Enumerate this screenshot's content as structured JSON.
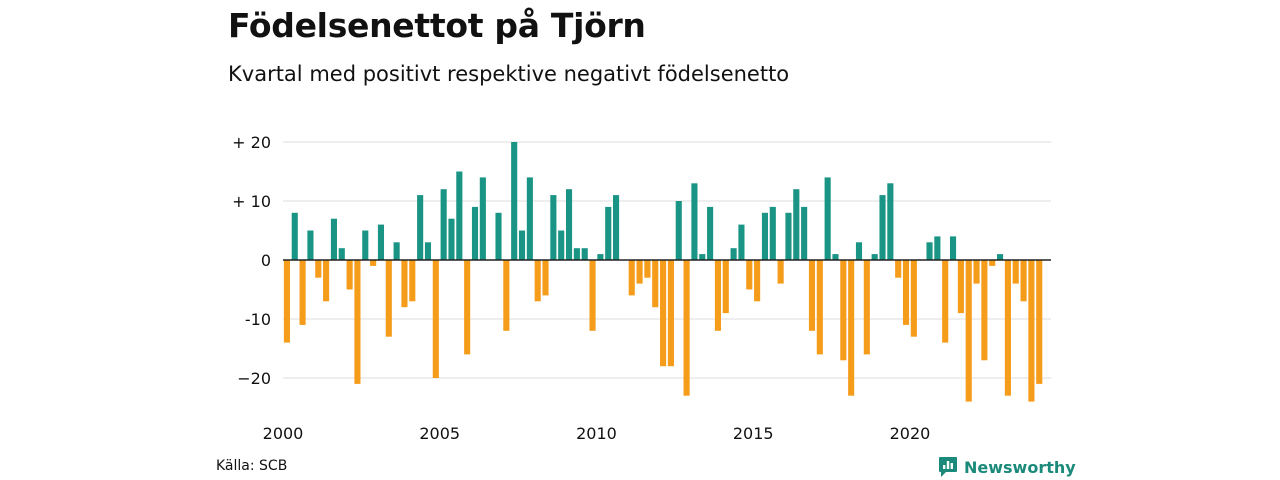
{
  "header": {
    "title": "Födelsenettot på Tjörn",
    "subtitle": "Kvartal med positivt respektive negativt födelsenetto"
  },
  "footer": {
    "source": "Källa: SCB",
    "brand": "Newsworthy",
    "brand_icon": "newsworthy-logo-icon"
  },
  "colors": {
    "positive": "#1a9484",
    "negative": "#f59c1a",
    "grid": "#dddddd",
    "zero_line": "#222222",
    "brand": "#1b8a7a"
  },
  "chart_data": {
    "type": "bar",
    "title": "Födelsenettot på Tjörn",
    "subtitle": "Kvartal med positivt respektive negativt födelsenetto",
    "xlabel": "",
    "ylabel": "",
    "ylim": [
      -25,
      22
    ],
    "y_ticks": [
      {
        "value": 20,
        "label": "+ 20"
      },
      {
        "value": 10,
        "label": "+ 10"
      },
      {
        "value": 0,
        "label": "0"
      },
      {
        "value": -10,
        "label": "-10"
      },
      {
        "value": -20,
        "label": "−20"
      }
    ],
    "x_ticks": [
      "2000",
      "2005",
      "2010",
      "2015",
      "2020"
    ],
    "x_tick_quarter_index": [
      0,
      20,
      40,
      60,
      80
    ],
    "grid": true,
    "categories": [
      "2000 Q1",
      "2000 Q2",
      "2000 Q3",
      "2000 Q4",
      "2001 Q1",
      "2001 Q2",
      "2001 Q3",
      "2001 Q4",
      "2002 Q1",
      "2002 Q2",
      "2002 Q3",
      "2002 Q4",
      "2003 Q1",
      "2003 Q2",
      "2003 Q3",
      "2003 Q4",
      "2004 Q1",
      "2004 Q2",
      "2004 Q3",
      "2004 Q4",
      "2005 Q1",
      "2005 Q2",
      "2005 Q3",
      "2005 Q4",
      "2006 Q1",
      "2006 Q2",
      "2006 Q3",
      "2006 Q4",
      "2007 Q1",
      "2007 Q2",
      "2007 Q3",
      "2007 Q4",
      "2008 Q1",
      "2008 Q2",
      "2008 Q3",
      "2008 Q4",
      "2009 Q1",
      "2009 Q2",
      "2009 Q3",
      "2009 Q4",
      "2010 Q1",
      "2010 Q2",
      "2010 Q3",
      "2010 Q4",
      "2011 Q1",
      "2011 Q2",
      "2011 Q3",
      "2011 Q4",
      "2012 Q1",
      "2012 Q2",
      "2012 Q3",
      "2012 Q4",
      "2013 Q1",
      "2013 Q2",
      "2013 Q3",
      "2013 Q4",
      "2014 Q1",
      "2014 Q2",
      "2014 Q3",
      "2014 Q4",
      "2015 Q1",
      "2015 Q2",
      "2015 Q3",
      "2015 Q4",
      "2016 Q1",
      "2016 Q2",
      "2016 Q3",
      "2016 Q4",
      "2017 Q1",
      "2017 Q2",
      "2017 Q3",
      "2017 Q4",
      "2018 Q1",
      "2018 Q2",
      "2018 Q3",
      "2018 Q4",
      "2019 Q1",
      "2019 Q2",
      "2019 Q3",
      "2019 Q4",
      "2020 Q1",
      "2020 Q2",
      "2020 Q3",
      "2020 Q4",
      "2021 Q1",
      "2021 Q2",
      "2021 Q3",
      "2021 Q4",
      "2022 Q1",
      "2022 Q2",
      "2022 Q3",
      "2022 Q4",
      "2023 Q1",
      "2023 Q2",
      "2023 Q3",
      "2023 Q4",
      "2024 Q1",
      "2024 Q2"
    ],
    "values": [
      -14,
      8,
      -11,
      5,
      -3,
      -7,
      7,
      2,
      -5,
      -21,
      5,
      -1,
      6,
      -13,
      3,
      -8,
      -7,
      11,
      3,
      -20,
      12,
      7,
      15,
      -16,
      9,
      14,
      0,
      8,
      -12,
      20,
      5,
      14,
      -7,
      -6,
      11,
      5,
      12,
      2,
      2,
      -12,
      1,
      9,
      11,
      0,
      -6,
      -4,
      -3,
      -8,
      -18,
      -18,
      10,
      -23,
      13,
      1,
      9,
      -12,
      -9,
      2,
      6,
      -5,
      -7,
      8,
      9,
      -4,
      8,
      12,
      9,
      -12,
      -16,
      14,
      1,
      -17,
      -23,
      3,
      -16,
      1,
      11,
      13,
      -3,
      -11,
      -13,
      0,
      3,
      4,
      -14,
      4,
      -9,
      -24,
      -4,
      -17,
      -1,
      1,
      -23,
      -4,
      -7,
      -24,
      -21,
      0
    ]
  }
}
